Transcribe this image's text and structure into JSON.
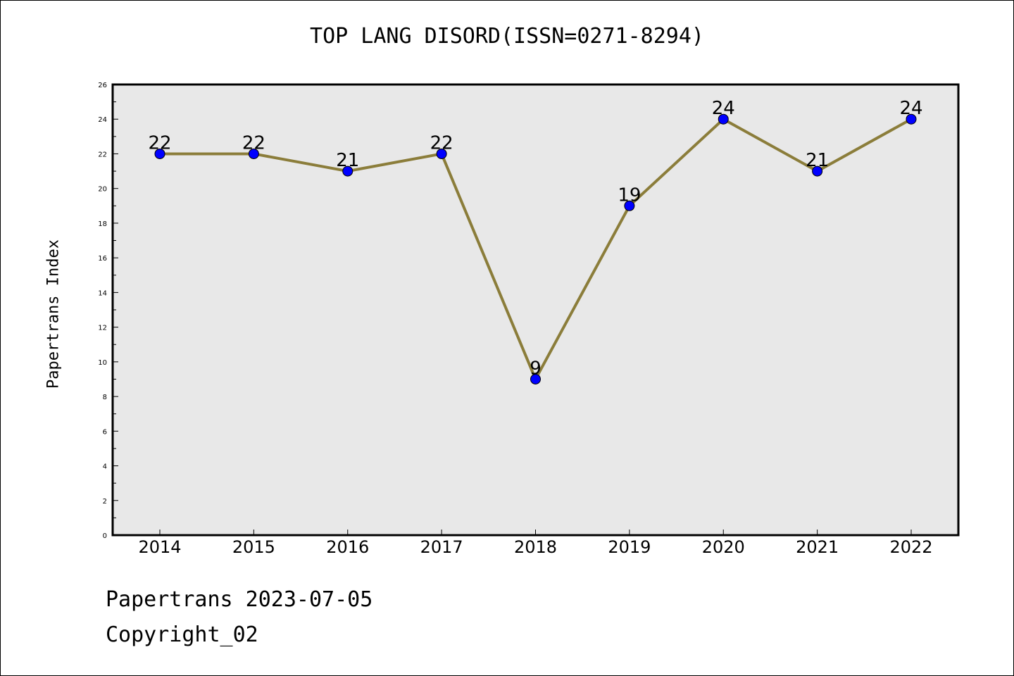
{
  "title": "TOP LANG DISORD(ISSN=0271-8294)",
  "footer": {
    "line1": "Papertrans 2023-07-05",
    "line2": "Copyright_02"
  },
  "chart_data": {
    "type": "line",
    "title": "TOP LANG DISORD(ISSN=0271-8294)",
    "xlabel": "",
    "ylabel": "Papertrans Index",
    "x": [
      "2014",
      "2015",
      "2016",
      "2017",
      "2018",
      "2019",
      "2020",
      "2021",
      "2022"
    ],
    "series": [
      {
        "values": [
          22,
          22,
          21,
          22,
          9,
          19,
          24,
          21,
          24
        ]
      }
    ],
    "ylim": [
      0,
      26
    ],
    "yticks": [
      0,
      2,
      4,
      6,
      8,
      10,
      12,
      14,
      16,
      18,
      20,
      22,
      24,
      26
    ],
    "grid": false,
    "colors": {
      "line": "#8b7d3a",
      "marker": "#0000ff",
      "plot_background": "#e8e8e8"
    }
  }
}
